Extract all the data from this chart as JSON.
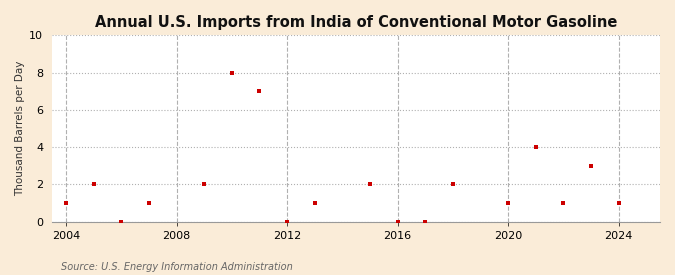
{
  "title": "Annual U.S. Imports from India of Conventional Motor Gasoline",
  "ylabel": "Thousand Barrels per Day",
  "source": "Source: U.S. Energy Information Administration",
  "fig_background": "#faecd8",
  "plot_background": "#ffffff",
  "marker_color": "#cc0000",
  "years": [
    2004,
    2005,
    2006,
    2007,
    2009,
    2010,
    2011,
    2012,
    2013,
    2015,
    2016,
    2017,
    2018,
    2020,
    2021,
    2022,
    2023,
    2024
  ],
  "values": [
    1,
    2,
    0,
    1,
    2,
    8,
    7,
    0,
    1,
    2,
    0,
    0,
    2,
    1,
    4,
    1,
    3,
    1
  ],
  "xlim": [
    2003.5,
    2025.5
  ],
  "ylim": [
    0,
    10
  ],
  "yticks": [
    0,
    2,
    4,
    6,
    8,
    10
  ],
  "xticks": [
    2004,
    2008,
    2012,
    2016,
    2020,
    2024
  ],
  "title_fontsize": 10.5,
  "label_fontsize": 7.5,
  "tick_fontsize": 8,
  "source_fontsize": 7
}
